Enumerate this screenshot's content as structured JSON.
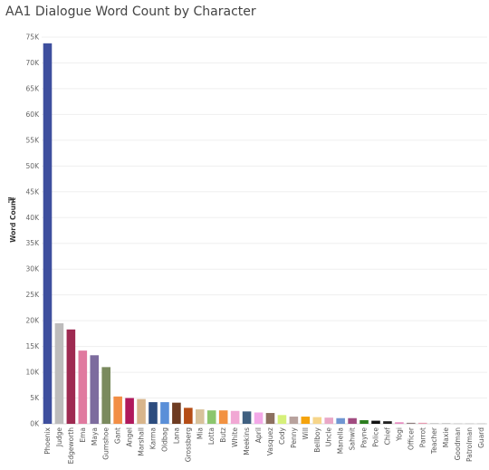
{
  "chart_data": {
    "type": "bar",
    "title": "AA1 Dialogue Word Count by Character",
    "xlabel": "",
    "ylabel": "Word Count",
    "ylim": [
      0,
      75000
    ],
    "yticks": [
      0,
      5000,
      10000,
      15000,
      20000,
      25000,
      30000,
      35000,
      40000,
      45000,
      50000,
      55000,
      60000,
      65000,
      70000,
      75000
    ],
    "ytick_labels": [
      "0K",
      "5K",
      "10K",
      "15K",
      "20K",
      "25K",
      "30K",
      "35K",
      "40K",
      "45K",
      "50K",
      "55K",
      "60K",
      "65K",
      "70K",
      "75K"
    ],
    "grid": true,
    "legend": "none",
    "sort_icon": "sort-descending-icon",
    "categories": [
      "Phoenix",
      "Judge",
      "Edgeworth",
      "Ema",
      "Maya",
      "Gumshoe",
      "Gant",
      "Angel",
      "Marshall",
      "Karma",
      "Oldbag",
      "Lana",
      "Grossberg",
      "Mia",
      "Lotta",
      "Butz",
      "White",
      "Meekins",
      "April",
      "Vasquez",
      "Cody",
      "Penny",
      "Will",
      "Bellboy",
      "Uncle",
      "Manella",
      "Sahwit",
      "Payne",
      "Police",
      "Chief",
      "Yogi",
      "Officer",
      "Parrot",
      "Teacher",
      "Maxie",
      "Goodman",
      "Patrolman",
      "Guard"
    ],
    "values": [
      73800,
      19500,
      18300,
      14200,
      13300,
      11000,
      5300,
      5000,
      4800,
      4200,
      4200,
      4100,
      3100,
      2800,
      2600,
      2600,
      2500,
      2400,
      2200,
      2100,
      1700,
      1400,
      1400,
      1300,
      1200,
      1100,
      1100,
      700,
      600,
      500,
      300,
      200,
      200,
      100,
      100,
      50,
      50,
      50
    ],
    "colors": [
      "#3e4f9e",
      "#bdbcbc",
      "#9e2a51",
      "#e07a9f",
      "#7d6c9e",
      "#7a8a5e",
      "#f28e45",
      "#b0195c",
      "#d8b58b",
      "#2c4c7e",
      "#5a8fd8",
      "#6e3b21",
      "#b54d16",
      "#d8c29b",
      "#8cc66d",
      "#f29241",
      "#f1a7d4",
      "#3f6080",
      "#f3a8e8",
      "#8c7060",
      "#d6f07a",
      "#b8a29d",
      "#f5a30c",
      "#f6d58a",
      "#e9a7c6",
      "#6f96d2",
      "#a14b80",
      "#2b7d1e",
      "#111111",
      "#222222",
      "#e68ac0",
      "#8f7f7f",
      "#e79ab0",
      "#aaaaaa",
      "#aaaaaa",
      "#aaaaaa",
      "#aaaaaa",
      "#aaaaaa"
    ]
  }
}
